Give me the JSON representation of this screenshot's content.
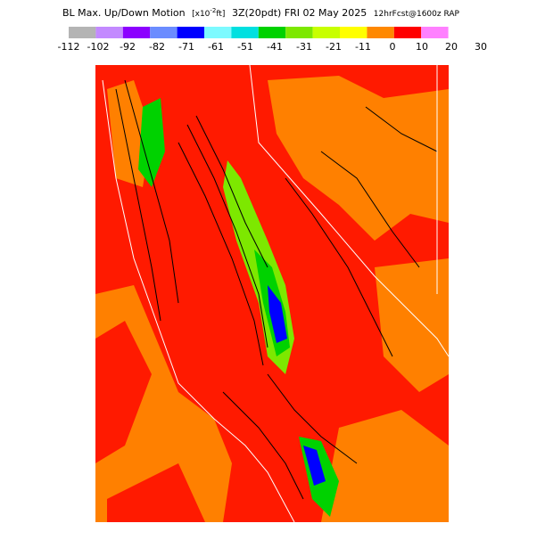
{
  "header": {
    "title": "BL Max. Up/Down Motion",
    "units_open": "[x10",
    "units_exp": "-2",
    "units_close": "ft]",
    "valid": "3Z(20pdt) FRI 02 May 2025",
    "forecast": "12hrFcst@1600z RAP"
  },
  "legend": {
    "colors": [
      "#b4b4b4",
      "#c38aff",
      "#8c00ff",
      "#6b8cff",
      "#0000ff",
      "#7dfaff",
      "#00e0e0",
      "#00d200",
      "#7de800",
      "#c8ff00",
      "#ffff00",
      "#ff8800",
      "#ff0000",
      "#ff80ff"
    ],
    "labels": [
      -112,
      -102,
      -92,
      -82,
      -71,
      -61,
      -51,
      -41,
      -31,
      -21,
      -11,
      0,
      10,
      20,
      30
    ]
  }
}
